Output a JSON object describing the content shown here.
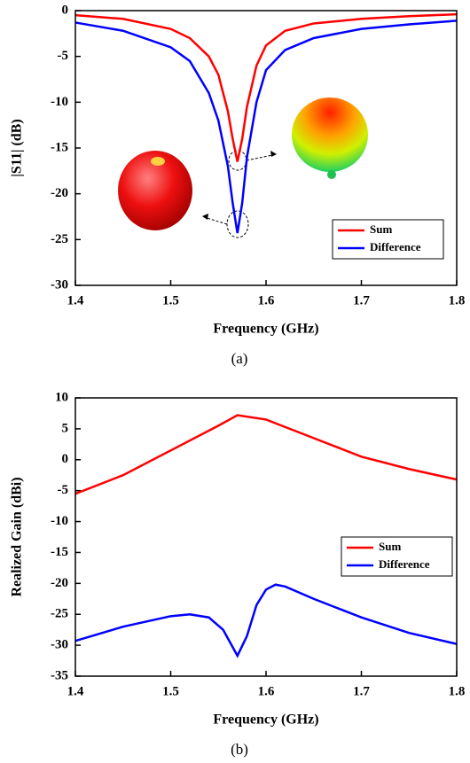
{
  "chart_data": [
    {
      "type": "line",
      "xlabel": "Frequency (GHz)",
      "ylabel": "|S11| (dB)",
      "caption": "(a)",
      "xlim": [
        1.4,
        1.8
      ],
      "xticks": [
        1.4,
        1.5,
        1.6,
        1.7,
        1.8
      ],
      "ylim": [
        -30,
        0
      ],
      "yticks": [
        0,
        -5,
        -10,
        -15,
        -20,
        -25,
        -30
      ],
      "legend": "lower right",
      "series": [
        {
          "name": "Sum",
          "color": "#ff0000",
          "x": [
            1.4,
            1.45,
            1.5,
            1.52,
            1.54,
            1.55,
            1.56,
            1.565,
            1.57,
            1.575,
            1.58,
            1.59,
            1.6,
            1.62,
            1.65,
            1.7,
            1.75,
            1.8
          ],
          "values": [
            -0.5,
            -0.9,
            -2,
            -3,
            -5,
            -7,
            -11,
            -14,
            -16.5,
            -14,
            -10.5,
            -6,
            -3.8,
            -2.2,
            -1.4,
            -0.9,
            -0.6,
            -0.4
          ]
        },
        {
          "name": "Difference",
          "color": "#0000ff",
          "x": [
            1.4,
            1.45,
            1.5,
            1.52,
            1.54,
            1.55,
            1.56,
            1.565,
            1.57,
            1.575,
            1.58,
            1.59,
            1.6,
            1.62,
            1.65,
            1.7,
            1.75,
            1.8
          ],
          "values": [
            -1.3,
            -2.2,
            -4,
            -5.5,
            -9,
            -12,
            -17,
            -21,
            -24.3,
            -21,
            -16,
            -10,
            -6.5,
            -4.3,
            -3,
            -2,
            -1.5,
            -1.1
          ]
        }
      ]
    },
    {
      "type": "line",
      "xlabel": "Frequency (GHz)",
      "ylabel": "Realized Gain (dBi)",
      "caption": "(b)",
      "xlim": [
        1.4,
        1.8
      ],
      "xticks": [
        1.4,
        1.5,
        1.6,
        1.7,
        1.8
      ],
      "ylim": [
        -35,
        10
      ],
      "yticks": [
        10,
        5,
        0,
        -5,
        -10,
        -15,
        -20,
        -25,
        -30,
        -35
      ],
      "legend": "center right",
      "series": [
        {
          "name": "Sum",
          "color": "#ff0000",
          "x": [
            1.4,
            1.45,
            1.5,
            1.55,
            1.57,
            1.6,
            1.65,
            1.7,
            1.75,
            1.8
          ],
          "values": [
            -5.5,
            -2.5,
            1.5,
            5.5,
            7.2,
            6.5,
            3.5,
            0.5,
            -1.5,
            -3.2
          ]
        },
        {
          "name": "Difference",
          "color": "#0000ff",
          "x": [
            1.4,
            1.45,
            1.5,
            1.52,
            1.54,
            1.555,
            1.57,
            1.58,
            1.59,
            1.6,
            1.61,
            1.62,
            1.65,
            1.7,
            1.75,
            1.8
          ],
          "values": [
            -29.3,
            -27,
            -25.3,
            -25,
            -25.5,
            -27.5,
            -31.7,
            -28.5,
            -23.5,
            -21,
            -20.2,
            -20.5,
            -22.5,
            -25.5,
            -28,
            -29.8
          ]
        }
      ]
    }
  ]
}
